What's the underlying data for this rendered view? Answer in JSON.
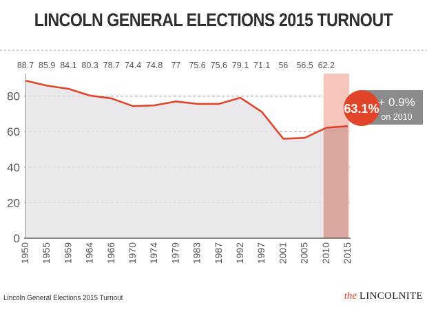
{
  "title": "LINCOLN GENERAL ELECTIONS 2015 TURNOUT",
  "footer": {
    "caption": "Lincoln General Elections 2015 Turnout",
    "logo_prefix": "the",
    "logo_name": "LINCOLNITE"
  },
  "colors": {
    "line": "#e0452a",
    "area": "#e6e4e7",
    "highlight_band": "#f6c6bc",
    "highlight_band_2015": "#d9a79e",
    "badge": "#e0452a",
    "change_box": "#8c8c8c",
    "grid": "#9a9a9a",
    "text": "#555555"
  },
  "chart_data": {
    "type": "area",
    "x": [
      "1950",
      "1955",
      "1959",
      "1964",
      "1966",
      "1970",
      "1974",
      "1979",
      "1983",
      "1987",
      "1992",
      "1997",
      "2001",
      "2005",
      "2010",
      "2015"
    ],
    "values": [
      88.7,
      85.9,
      84.1,
      80.3,
      78.7,
      74.4,
      74.8,
      77,
      75.6,
      75.6,
      79.1,
      71.1,
      56,
      56.5,
      62.2,
      63.1
    ],
    "top_labels": [
      "88.7",
      "85.9",
      "84.1",
      "80.3",
      "78.7",
      "74.4",
      "74.8",
      "77",
      "75.6",
      "75.6",
      "79.1",
      "71.1",
      "56",
      "56.5",
      "62.2"
    ],
    "yticks": [
      0,
      20,
      40,
      60,
      80
    ],
    "ylim": [
      0,
      95
    ],
    "highlight": {
      "value_label": "63.1%",
      "change_label": "+ 0.9%",
      "change_sub": "on 2010"
    },
    "grid": true
  }
}
